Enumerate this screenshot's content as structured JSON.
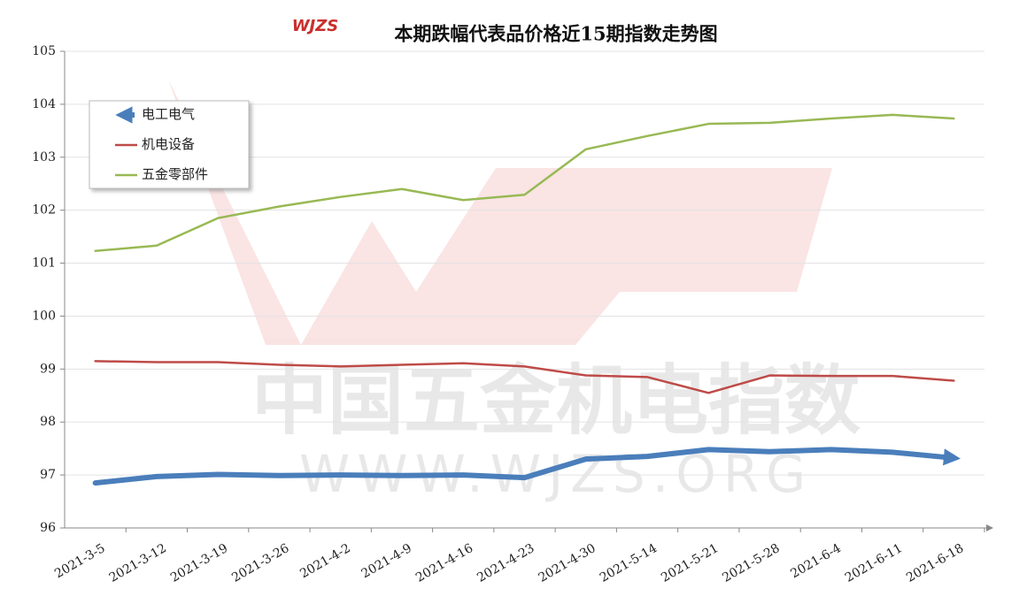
{
  "chart_data": {
    "type": "line",
    "title": "本期跌幅代表品价格近15期指数走势图",
    "logo": "WJZS",
    "watermark": [
      "中国五金机电指数",
      "WWW.WJZS.ORG"
    ],
    "categories": [
      "2021-3-5",
      "2021-3-12",
      "2021-3-19",
      "2021-3-26",
      "2021-4-2",
      "2021-4-9",
      "2021-4-16",
      "2021-4-23",
      "2021-4-30",
      "2021-5-14",
      "2021-5-21",
      "2021-5-28",
      "2021-6-4",
      "2021-6-11",
      "2021-6-18"
    ],
    "series": [
      {
        "name": "电工电气",
        "color": "#4a7ebb",
        "values": [
          96.85,
          96.97,
          97.01,
          96.99,
          97.0,
          96.99,
          97.0,
          96.95,
          97.3,
          97.35,
          97.48,
          97.44,
          97.48,
          97.43,
          97.32
        ]
      },
      {
        "name": "机电设备",
        "color": "#be4b48",
        "values": [
          99.15,
          99.13,
          99.13,
          99.08,
          99.05,
          99.08,
          99.11,
          99.05,
          98.88,
          98.85,
          98.55,
          98.88,
          98.87,
          98.87,
          98.78
        ]
      },
      {
        "name": "五金零部件",
        "color": "#98b954",
        "values": [
          101.23,
          101.33,
          101.85,
          102.07,
          102.25,
          102.4,
          102.19,
          102.29,
          103.15,
          103.4,
          103.63,
          103.65,
          103.73,
          103.8,
          103.73
        ]
      }
    ],
    "ylim": [
      96,
      105
    ],
    "yticks": [
      96,
      97,
      98,
      99,
      100,
      101,
      102,
      103,
      104,
      105
    ],
    "grid": true,
    "legend": "top-left"
  }
}
